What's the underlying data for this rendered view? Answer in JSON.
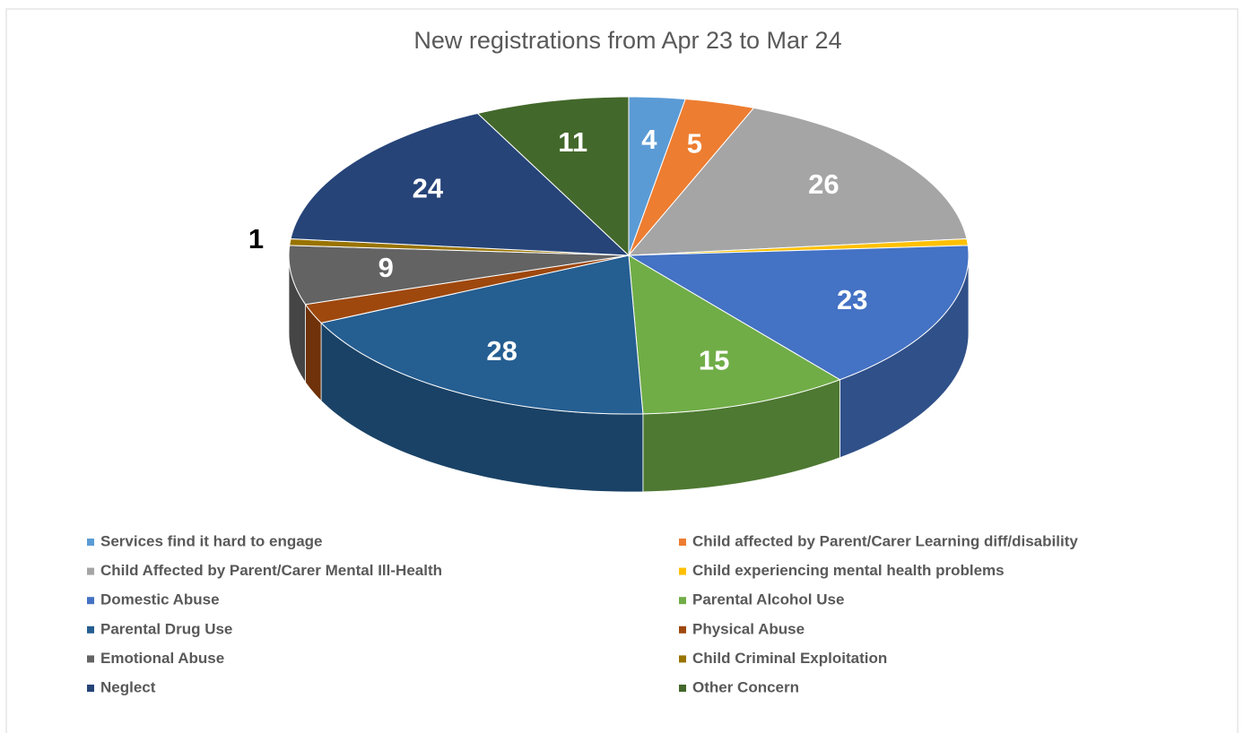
{
  "chart_data": {
    "type": "pie3d",
    "title": "New registrations from Apr 23 to Mar 24",
    "categories": [
      "Services find it hard to engage",
      "Child affected by Parent/Carer Learning diff/disability",
      "Child Affected by Parent/Carer Mental Ill-Health",
      "Child experiencing mental health problems",
      "Domestic Abuse",
      "Parental Alcohol Use",
      "Parental Drug Use",
      "Physical Abuse",
      "Emotional Abuse",
      "Child Criminal Exploitation",
      "Neglect",
      "Other Concern"
    ],
    "values": [
      4,
      5,
      26,
      1,
      23,
      15,
      28,
      3,
      9,
      1,
      24,
      11
    ],
    "value_labels": [
      "4",
      "5",
      "26",
      null,
      "23",
      "15",
      "28",
      null,
      "9",
      "1",
      "24",
      "11"
    ],
    "colors": [
      "#5b9bd5",
      "#ed7d31",
      "#a5a5a5",
      "#ffc000",
      "#4472c4",
      "#70ad47",
      "#255e91",
      "#9e480e",
      "#636363",
      "#997300",
      "#264478",
      "#43682b"
    ],
    "legend": "bottom"
  }
}
